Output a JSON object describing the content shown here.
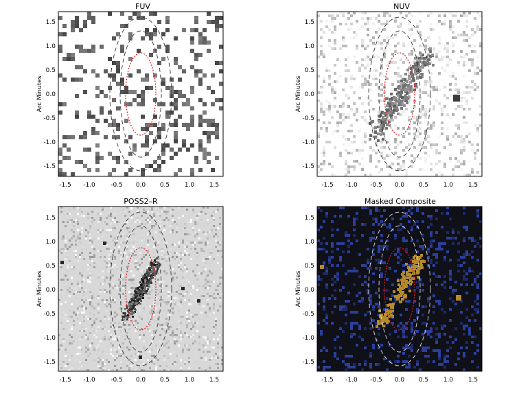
{
  "axis": {
    "ylabel": "Arc Minutes",
    "xticks": [
      "-1.5",
      "-1.0",
      "-0.5",
      "0.0",
      "0.5",
      "1.0",
      "1.5"
    ],
    "yticks": [
      "1.5",
      "1.0",
      "0.5",
      "0.0",
      "-0.5",
      "-1.0",
      "-1.5"
    ]
  },
  "panels": [
    {
      "id": "fuv",
      "title": "FUV",
      "style": "gray",
      "ellipse_color": "#333333"
    },
    {
      "id": "nuv",
      "title": "NUV",
      "style": "gray",
      "ellipse_color": "#333333"
    },
    {
      "id": "poss2r",
      "title": "POSS2–R",
      "style": "gray",
      "ellipse_color": "#333333"
    },
    {
      "id": "composite",
      "title": "Masked Composite",
      "style": "color",
      "ellipse_color": "#e8e8e8"
    }
  ],
  "colors": {
    "inner_ellipse": "#e0161c",
    "frame": "#000000",
    "composite_bg": "#101018",
    "composite_blue": "#2b3f9a",
    "composite_yellow": "#b58a2a"
  }
}
